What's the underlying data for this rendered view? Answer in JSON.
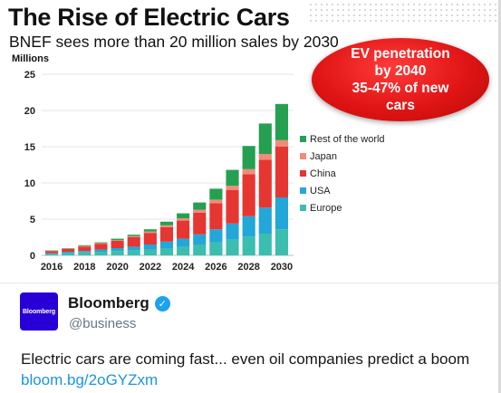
{
  "chart_data": {
    "type": "bar",
    "stacked": true,
    "title": "The Rise of Electric Cars",
    "subtitle": "BNEF sees more than 20 million sales by 2030",
    "ylabel": "Millions",
    "ylim": [
      0,
      25
    ],
    "yticks": [
      "0",
      "5",
      "10",
      "15",
      "20",
      "25"
    ],
    "categories": [
      "2016",
      "2017",
      "2018",
      "2019",
      "2020",
      "2021",
      "2022",
      "2023",
      "2024",
      "2025",
      "2026",
      "2027",
      "2028",
      "2029",
      "2030"
    ],
    "xtick_labels": [
      "2016",
      "",
      "2018",
      "",
      "2020",
      "",
      "2022",
      "",
      "2024",
      "",
      "2026",
      "",
      "2028",
      "",
      "2030"
    ],
    "grid": true,
    "legend_position": "right",
    "series": [
      {
        "name": "Europe",
        "color": "#3bbdb0",
        "values": [
          0.2,
          0.3,
          0.4,
          0.5,
          0.6,
          0.7,
          0.8,
          1.0,
          1.2,
          1.5,
          1.8,
          2.2,
          2.6,
          3.0,
          3.6
        ]
      },
      {
        "name": "USA",
        "color": "#22a7d8",
        "values": [
          0.1,
          0.2,
          0.2,
          0.3,
          0.4,
          0.5,
          0.7,
          0.9,
          1.1,
          1.4,
          1.8,
          2.2,
          2.8,
          3.6,
          4.4
        ]
      },
      {
        "name": "China",
        "color": "#e53632",
        "values": [
          0.3,
          0.4,
          0.6,
          0.8,
          1.0,
          1.3,
          1.6,
          2.0,
          2.5,
          3.0,
          3.6,
          4.6,
          5.8,
          6.6,
          7.0
        ]
      },
      {
        "name": "Japan",
        "color": "#f08c78",
        "values": [
          0.05,
          0.05,
          0.1,
          0.1,
          0.1,
          0.15,
          0.2,
          0.25,
          0.3,
          0.4,
          0.5,
          0.6,
          0.7,
          0.8,
          0.9
        ]
      },
      {
        "name": "Rest of the world",
        "color": "#25a050",
        "values": [
          0.05,
          0.05,
          0.1,
          0.1,
          0.2,
          0.2,
          0.3,
          0.5,
          0.7,
          1.0,
          1.5,
          2.2,
          3.2,
          4.2,
          5.0
        ]
      }
    ],
    "legend_order": [
      "Rest of the world",
      "Japan",
      "China",
      "USA",
      "Europe"
    ],
    "annotation": [
      "EV penetration",
      "by 2040",
      "35-47% of new",
      "cars"
    ]
  },
  "tweet": {
    "avatar_text": "Bloomberg",
    "name": "Bloomberg",
    "handle": "@business",
    "verified_icon": "check-icon",
    "text": "Electric cars are coming fast... even oil companies predict a boom ",
    "link": "bloom.bg/2oGYZxm"
  }
}
